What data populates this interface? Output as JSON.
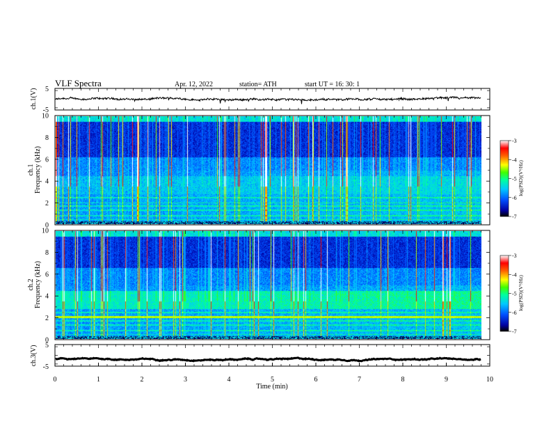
{
  "header": {
    "title": "VLF  Spectra",
    "date": "Apr. 12, 2022",
    "station": "station= ATH",
    "start": "start  UT  =    16: 30: 1"
  },
  "chart_data": {
    "type": "spectrogram",
    "x": {
      "label": "Time  (min)",
      "range": [
        0,
        10
      ],
      "ticks": [
        "0",
        "1",
        "2",
        "3",
        "4",
        "5",
        "6",
        "7",
        "8",
        "9",
        "10"
      ]
    },
    "ch1_waveform": {
      "ylabel": "ch.1(V)",
      "range": [
        -5,
        5
      ],
      "ticks": [
        "5",
        "-5"
      ],
      "mean": 0.0,
      "noise": 0.8
    },
    "ch1_spectrogram": {
      "ylabel": "ch.1 Frequency (kHz)",
      "range": [
        0,
        10
      ],
      "ticks": [
        "0",
        "2",
        "4",
        "6",
        "8",
        "10"
      ]
    },
    "ch2_spectrogram": {
      "ylabel": "ch.2 Frequency (kHz)",
      "range": [
        0,
        10
      ],
      "ticks": [
        "0",
        "2",
        "4",
        "6",
        "8",
        "10"
      ]
    },
    "ch3_waveform": {
      "ylabel": "ch.3(V)",
      "range": [
        -5,
        5
      ],
      "ticks": [
        "5",
        "-5"
      ],
      "mean": -1.8,
      "noise": 0.2
    },
    "data_end_min": 9.8,
    "colorbar": {
      "label": "log(PSD)(V²/Hz)",
      "range": [
        -7,
        -3
      ],
      "ticks": [
        "-3",
        "-4",
        "-5",
        "-6",
        "-7"
      ],
      "colors": [
        "#000000",
        "#0000a0",
        "#0050ff",
        "#00c8ff",
        "#00ffa0",
        "#40ff00",
        "#ffff00",
        "#ff6000",
        "#ff0000",
        "#ffffff"
      ]
    }
  }
}
